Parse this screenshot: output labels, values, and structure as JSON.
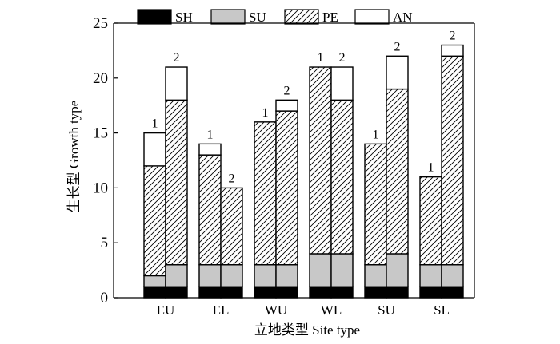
{
  "chart_data": {
    "type": "bar",
    "stacked": true,
    "xlabel": "立地类型 Site type",
    "ylabel": "生长型 Growth type",
    "ylim": [
      0,
      25
    ],
    "yticks": [
      0,
      5,
      10,
      15,
      20,
      25
    ],
    "grid": false,
    "legend_position": "top",
    "categories": [
      "EU",
      "EL",
      "WU",
      "WL",
      "SU",
      "SL"
    ],
    "bar_labels": [
      "1",
      "2"
    ],
    "stack_order": [
      "SH",
      "SU",
      "PE",
      "AN"
    ],
    "series": [
      {
        "name": "SH",
        "fill": "solid-black",
        "values": {
          "1": [
            1,
            1,
            1,
            1,
            1,
            1
          ],
          "2": [
            1,
            1,
            1,
            1,
            1,
            1
          ]
        }
      },
      {
        "name": "SU",
        "fill": "solid-gray",
        "values": {
          "1": [
            1,
            2,
            2,
            3,
            2,
            2
          ],
          "2": [
            2,
            2,
            2,
            3,
            3,
            2
          ]
        }
      },
      {
        "name": "PE",
        "fill": "diagonal-hatch",
        "values": {
          "1": [
            10,
            10,
            13,
            17,
            11,
            8
          ],
          "2": [
            15,
            7,
            14,
            14,
            15,
            19
          ]
        }
      },
      {
        "name": "AN",
        "fill": "solid-white",
        "values": {
          "1": [
            3,
            1,
            0,
            0,
            0,
            0
          ],
          "2": [
            3,
            0,
            1,
            3,
            3,
            1
          ]
        }
      }
    ],
    "colors": {
      "SH": "#000000",
      "SU": "#c8c8c8",
      "PE": "#ffffff",
      "AN": "#ffffff",
      "hatch": "#000000"
    }
  }
}
